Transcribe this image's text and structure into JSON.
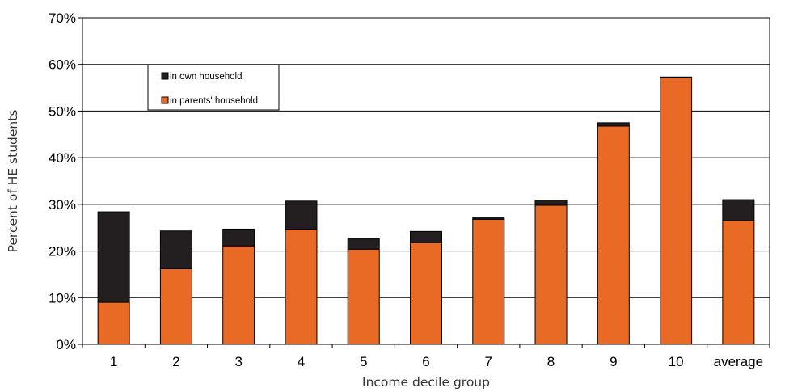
{
  "chart_data": {
    "type": "bar",
    "stacked": true,
    "categories": [
      "1",
      "2",
      "3",
      "4",
      "5",
      "6",
      "7",
      "8",
      "9",
      "10",
      "average"
    ],
    "series": [
      {
        "name": "in parents' household",
        "color": "#E86A24",
        "values": [
          9.0,
          16.2,
          21.1,
          24.7,
          20.4,
          21.8,
          26.8,
          29.8,
          46.8,
          57.2,
          26.5
        ]
      },
      {
        "name": "in own household",
        "color": "#231F20",
        "values": [
          19.4,
          8.1,
          3.6,
          6.0,
          2.2,
          2.4,
          0.3,
          1.1,
          0.7,
          0.1,
          4.5
        ]
      }
    ],
    "xlabel": "Income decile group",
    "ylabel": "Percent of HE students",
    "ylim": [
      0,
      70
    ],
    "yticks": [
      "0%",
      "10%",
      "20%",
      "30%",
      "40%",
      "50%",
      "60%",
      "70%"
    ],
    "grid": true,
    "legend_position": "top-left",
    "legend_order": [
      "in own household",
      "in parents' household"
    ]
  }
}
